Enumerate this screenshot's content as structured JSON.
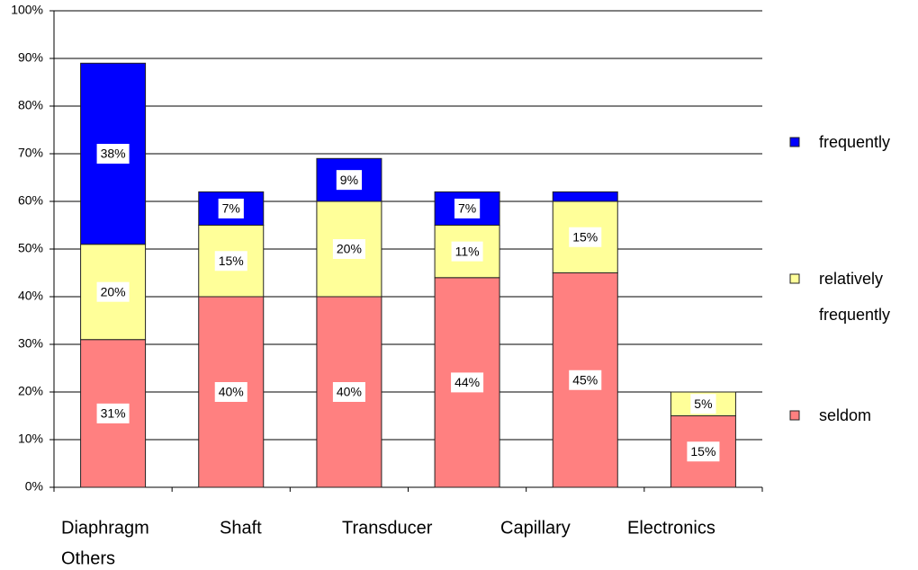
{
  "chart_data": {
    "type": "stacked_bar",
    "categories": [
      "Diaphragm",
      "Shaft",
      "Transducer",
      "Capillary",
      "Electronics",
      "Others"
    ],
    "series": [
      {
        "name": "seldom",
        "color": "#ff8080",
        "values": [
          31,
          40,
          40,
          44,
          45,
          15
        ],
        "value_labels": [
          "31%",
          "40%",
          "40%",
          "44%",
          "45%",
          "15%"
        ]
      },
      {
        "name": "relatively frequently",
        "color": "#ffff99",
        "values": [
          20,
          15,
          20,
          11,
          15,
          5
        ],
        "value_labels": [
          "20%",
          "15%",
          "20%",
          "11%",
          "15%",
          "5%"
        ]
      },
      {
        "name": "frequently",
        "color": "#0000ff",
        "values": [
          38,
          7,
          9,
          7,
          2,
          null
        ],
        "value_labels": [
          "38%",
          "7%",
          "9%",
          "7%",
          null,
          null
        ]
      }
    ],
    "ylim": [
      0,
      100
    ],
    "yticks": [
      {
        "value": 0,
        "label": "0%"
      },
      {
        "value": 10,
        "label": "10%"
      },
      {
        "value": 20,
        "label": "20%"
      },
      {
        "value": 30,
        "label": "30%"
      },
      {
        "value": 40,
        "label": "40%"
      },
      {
        "value": 50,
        "label": "50%"
      },
      {
        "value": 60,
        "label": "60%"
      },
      {
        "value": 70,
        "label": "70%"
      },
      {
        "value": 80,
        "label": "80%"
      },
      {
        "value": 90,
        "label": "90%"
      },
      {
        "value": 100,
        "label": "100%"
      }
    ],
    "grid": true
  }
}
